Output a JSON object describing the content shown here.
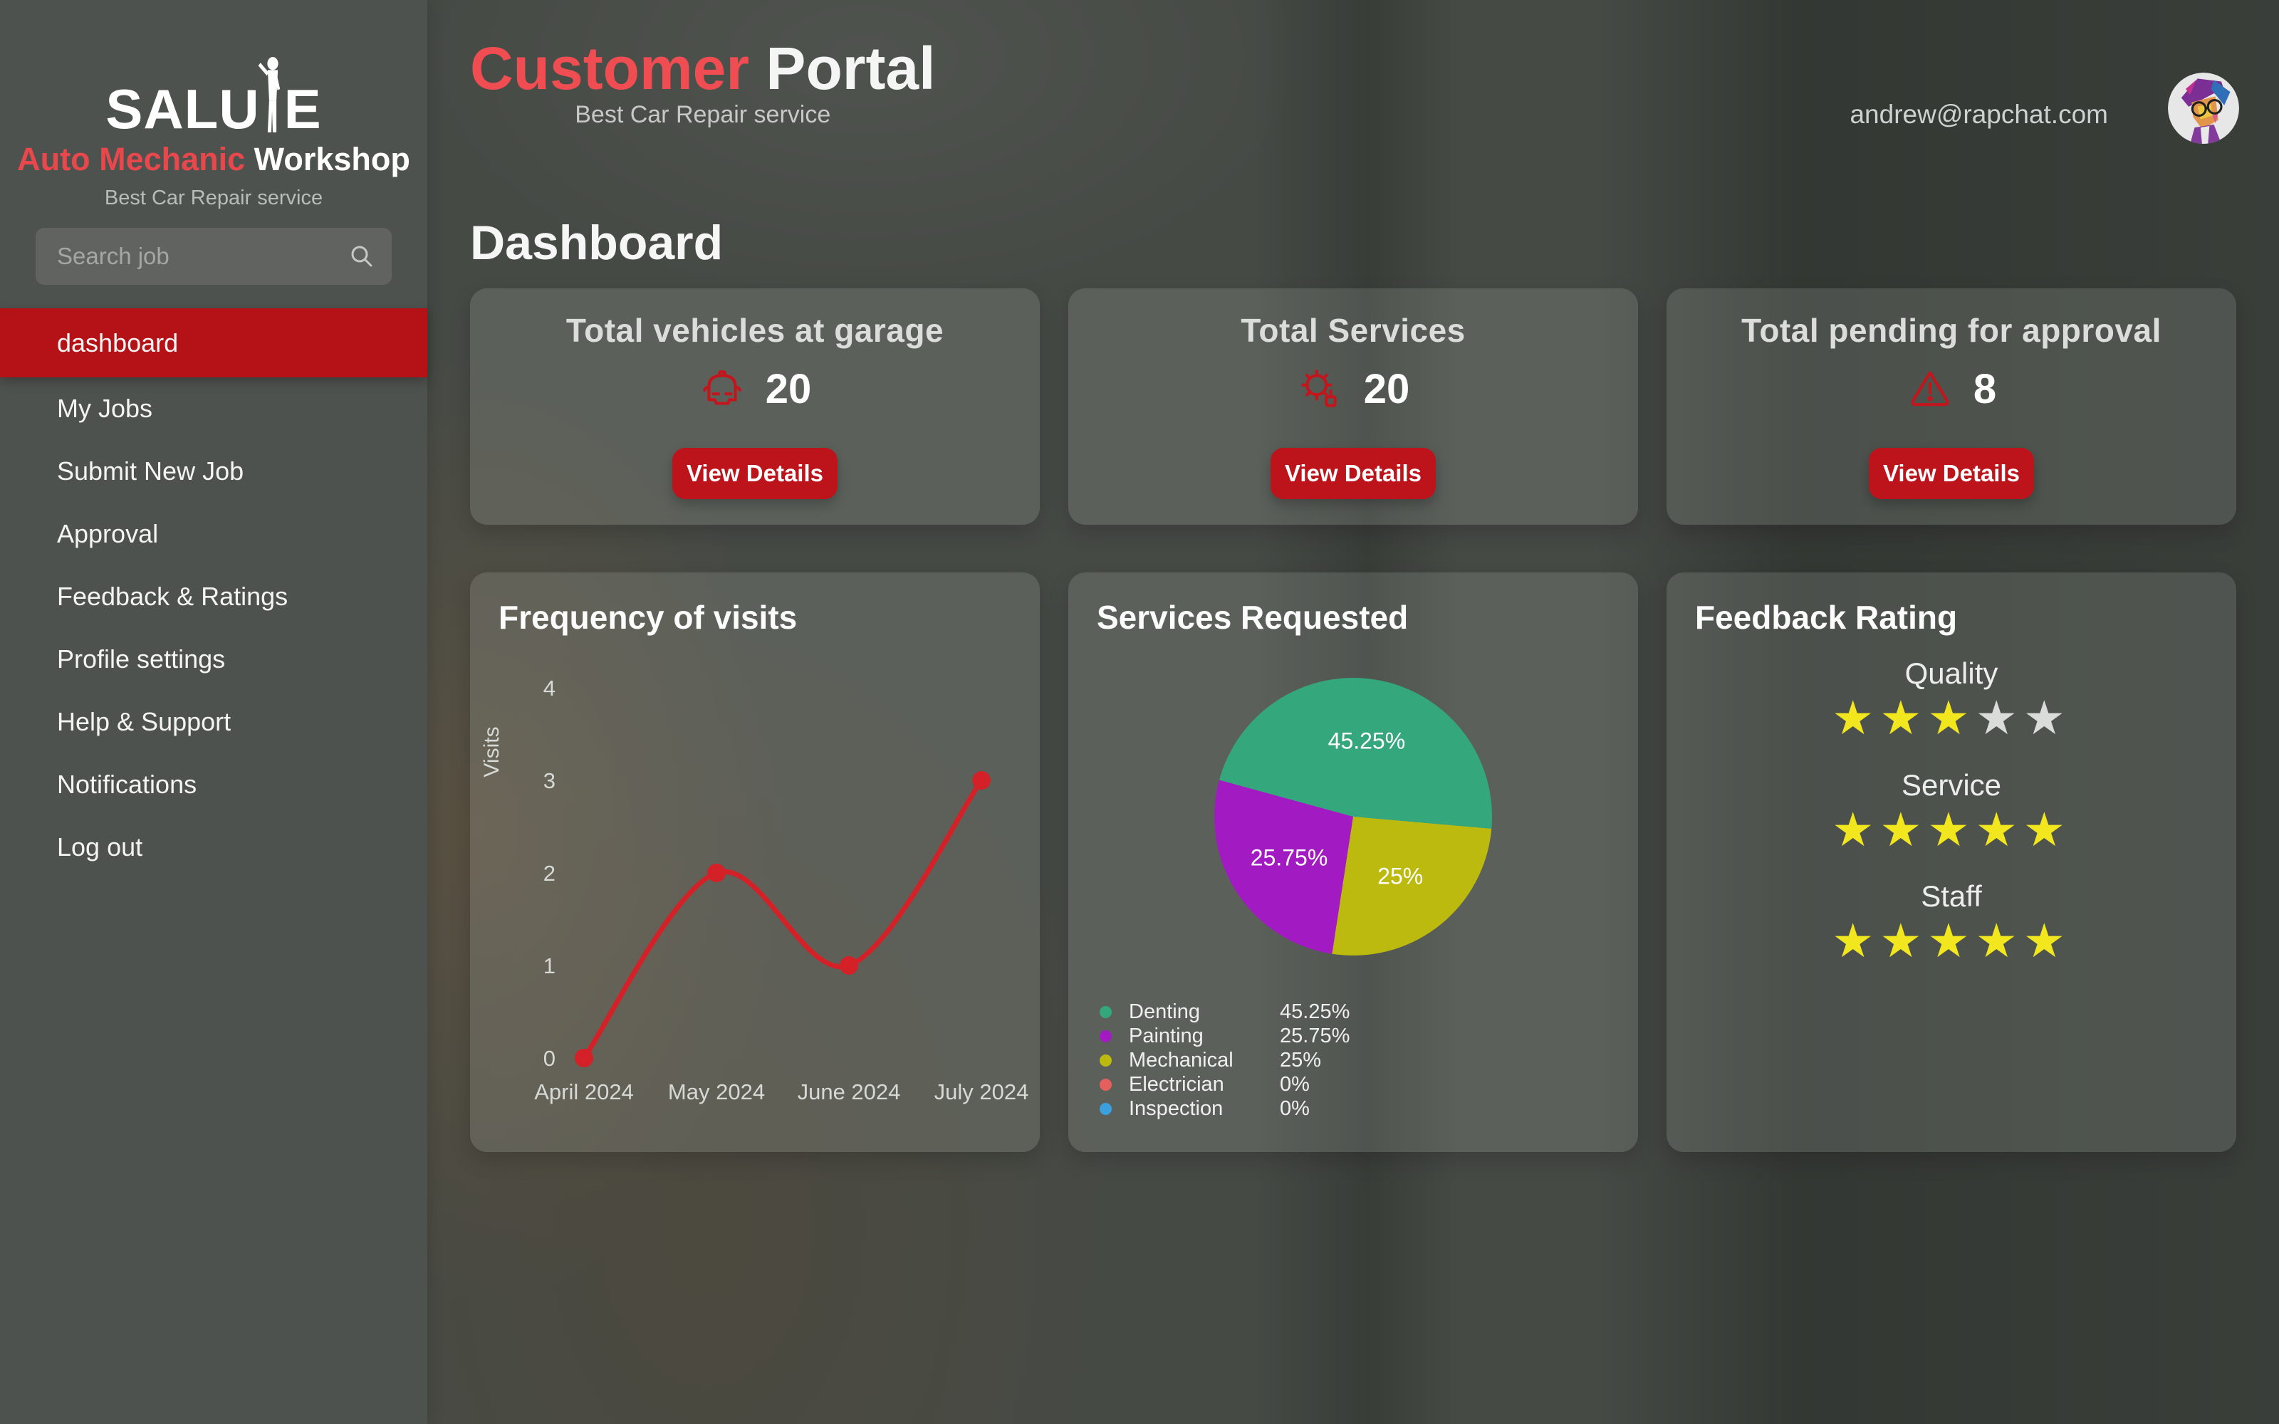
{
  "sidebar": {
    "logo": {
      "name_prefix": "SALU",
      "name_suffix": "E",
      "line2_accent": "Auto Mechanic",
      "line2_rest": " Workshop",
      "tagline": "Best Car Repair service"
    },
    "search": {
      "placeholder": "Search job"
    },
    "items": [
      {
        "label": "dashboard",
        "active": true
      },
      {
        "label": "My Jobs",
        "active": false
      },
      {
        "label": "Submit New Job",
        "active": false
      },
      {
        "label": "Approval",
        "active": false
      },
      {
        "label": "Feedback & Ratings",
        "active": false
      },
      {
        "label": "Profile settings",
        "active": false
      },
      {
        "label": "Help & Support",
        "active": false
      },
      {
        "label": "Notifications",
        "active": false
      },
      {
        "label": "Log out",
        "active": false
      }
    ]
  },
  "header": {
    "title_accent": "Customer",
    "title_rest": " Portal",
    "subtitle": "Best Car Repair service",
    "user_email": "andrew@rapchat.com"
  },
  "page_title": "Dashboard",
  "stat_cards": [
    {
      "title": "Total vehicles at garage",
      "icon": "car-icon",
      "value": "20",
      "button_label": "View Details"
    },
    {
      "title": "Total Services",
      "icon": "gear-icon",
      "value": "20",
      "button_label": "View Details"
    },
    {
      "title": "Total pending for approval",
      "icon": "warning-icon",
      "value": "8",
      "button_label": "View Details"
    }
  ],
  "chart_data": [
    {
      "type": "line",
      "title": "Frequency of visits",
      "xlabel": "",
      "ylabel": "Visits",
      "categories": [
        "April 2024",
        "May 2024",
        "June 2024",
        "July 2024"
      ],
      "values": [
        0,
        2,
        1,
        3
      ],
      "ylim": [
        0,
        4
      ],
      "yticks": [
        0,
        1,
        2,
        3,
        4
      ],
      "line_color": "#d42127",
      "point_color": "#d42127",
      "grid": false,
      "legend": false
    },
    {
      "type": "pie",
      "title": "Services Requested",
      "labels": [
        "Denting",
        "Painting",
        "Mechanical",
        "Electrician",
        "Inspection"
      ],
      "values": [
        45.25,
        25.75,
        25,
        0,
        0
      ],
      "value_labels": [
        "45.25%",
        "25.75%",
        "25%",
        "0%",
        "0%"
      ],
      "colors": [
        "#35a77c",
        "#a21bc2",
        "#bcb90f",
        "#e4605e",
        "#3b9fe0"
      ],
      "start_angle": 95,
      "direction": "counterclockwise",
      "legend_position": "bottom-left",
      "label_color": "#ffffff"
    }
  ],
  "feedback_card": {
    "title": "Feedback Rating",
    "max_stars": 5,
    "ratings": [
      {
        "label": "Quality",
        "stars": 3
      },
      {
        "label": "Service",
        "stars": 5
      },
      {
        "label": "Staff",
        "stars": 5
      }
    ]
  },
  "colors": {
    "sidebar_bg": "#4e524f",
    "active_item_red": "#b51217",
    "button_red": "#bd131b",
    "title_accent_red": "#ef4d52",
    "logo_accent_red": "#e8474c",
    "icon_red": "#c3161c",
    "star_filled": "#f2e71f",
    "star_empty": "#d9dcd9",
    "card_title_gray": "#dbddda",
    "email_gray": "#ced2ce"
  }
}
